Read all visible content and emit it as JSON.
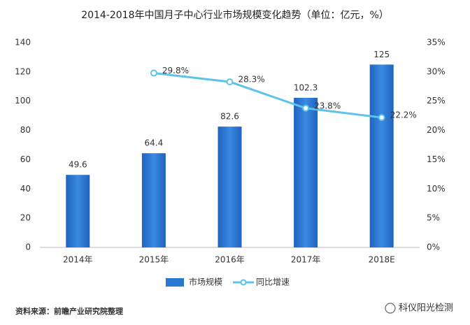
{
  "chart_data": {
    "type": "bar",
    "title": "2014-2018年中国月子中心行业市场规模变化趋势（单位：亿元，%）",
    "categories": [
      "2014年",
      "2015年",
      "2016年",
      "2017年",
      "2018E"
    ],
    "series": [
      {
        "name": "市场规模",
        "type": "bar",
        "color": "#2a78d4",
        "values": [
          49.6,
          64.4,
          82.6,
          102.3,
          125
        ]
      },
      {
        "name": "同比增速",
        "type": "line",
        "axis": "y2",
        "color": "#5cc3ea",
        "values": [
          null,
          29.8,
          28.3,
          23.8,
          22.2
        ],
        "value_labels": [
          null,
          "29.8%",
          "28.3%",
          "23.8%",
          "22.2%"
        ]
      }
    ],
    "ylim": [
      0,
      140
    ],
    "yticks": [
      0,
      20,
      40,
      60,
      80,
      100,
      120,
      140
    ],
    "y2lim": [
      0,
      35
    ],
    "y2ticks": [
      {
        "value": 0,
        "label": "0%"
      },
      {
        "value": 5,
        "label": "5%"
      },
      {
        "value": 10,
        "label": "10%"
      },
      {
        "value": 15,
        "label": "15%"
      },
      {
        "value": 20,
        "label": "20%"
      },
      {
        "value": 25,
        "label": "25%"
      },
      {
        "value": 30,
        "label": "30%"
      },
      {
        "value": 35,
        "label": "35%"
      }
    ],
    "source": "资料来源：前瞻产业研究院整理",
    "watermark": "科仪阳光检测"
  }
}
